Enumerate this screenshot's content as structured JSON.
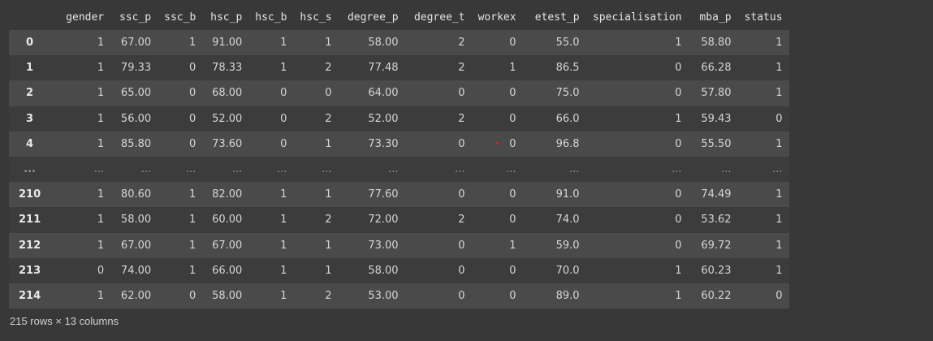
{
  "table": {
    "columns": [
      "gender",
      "ssc_p",
      "ssc_b",
      "hsc_p",
      "hsc_b",
      "hsc_s",
      "degree_p",
      "degree_t",
      "workex",
      "etest_p",
      "specialisation",
      "mba_p",
      "status"
    ],
    "rows": [
      {
        "index": "0",
        "cells": [
          "1",
          "67.00",
          "1",
          "91.00",
          "1",
          "1",
          "58.00",
          "2",
          "0",
          "55.0",
          "1",
          "58.80",
          "1"
        ]
      },
      {
        "index": "1",
        "cells": [
          "1",
          "79.33",
          "0",
          "78.33",
          "1",
          "2",
          "77.48",
          "2",
          "1",
          "86.5",
          "0",
          "66.28",
          "1"
        ]
      },
      {
        "index": "2",
        "cells": [
          "1",
          "65.00",
          "0",
          "68.00",
          "0",
          "0",
          "64.00",
          "0",
          "0",
          "75.0",
          "0",
          "57.80",
          "1"
        ]
      },
      {
        "index": "3",
        "cells": [
          "1",
          "56.00",
          "0",
          "52.00",
          "0",
          "2",
          "52.00",
          "2",
          "0",
          "66.0",
          "1",
          "59.43",
          "0"
        ]
      },
      {
        "index": "4",
        "cells": [
          "1",
          "85.80",
          "0",
          "73.60",
          "0",
          "1",
          "73.30",
          "0",
          "0",
          "96.8",
          "0",
          "55.50",
          "1"
        ]
      },
      {
        "index": "...",
        "cells": [
          "...",
          "...",
          "...",
          "...",
          "...",
          "...",
          "...",
          "...",
          "...",
          "...",
          "...",
          "...",
          "..."
        ]
      },
      {
        "index": "210",
        "cells": [
          "1",
          "80.60",
          "1",
          "82.00",
          "1",
          "1",
          "77.60",
          "0",
          "0",
          "91.0",
          "0",
          "74.49",
          "1"
        ]
      },
      {
        "index": "211",
        "cells": [
          "1",
          "58.00",
          "1",
          "60.00",
          "1",
          "2",
          "72.00",
          "2",
          "0",
          "74.0",
          "0",
          "53.62",
          "1"
        ]
      },
      {
        "index": "212",
        "cells": [
          "1",
          "67.00",
          "1",
          "67.00",
          "1",
          "1",
          "73.00",
          "0",
          "1",
          "59.0",
          "0",
          "69.72",
          "1"
        ]
      },
      {
        "index": "213",
        "cells": [
          "0",
          "74.00",
          "1",
          "66.00",
          "1",
          "1",
          "58.00",
          "0",
          "0",
          "70.0",
          "1",
          "60.23",
          "1"
        ]
      },
      {
        "index": "214",
        "cells": [
          "1",
          "62.00",
          "0",
          "58.00",
          "1",
          "2",
          "53.00",
          "0",
          "0",
          "89.0",
          "1",
          "60.22",
          "0"
        ]
      }
    ]
  },
  "footer": {
    "summary": "215 rows × 13 columns"
  },
  "colors": {
    "background": "#383838",
    "row_odd": "#4a4a4a",
    "row_even": "#3c3c3c",
    "cursor_dot": "#e02020"
  }
}
